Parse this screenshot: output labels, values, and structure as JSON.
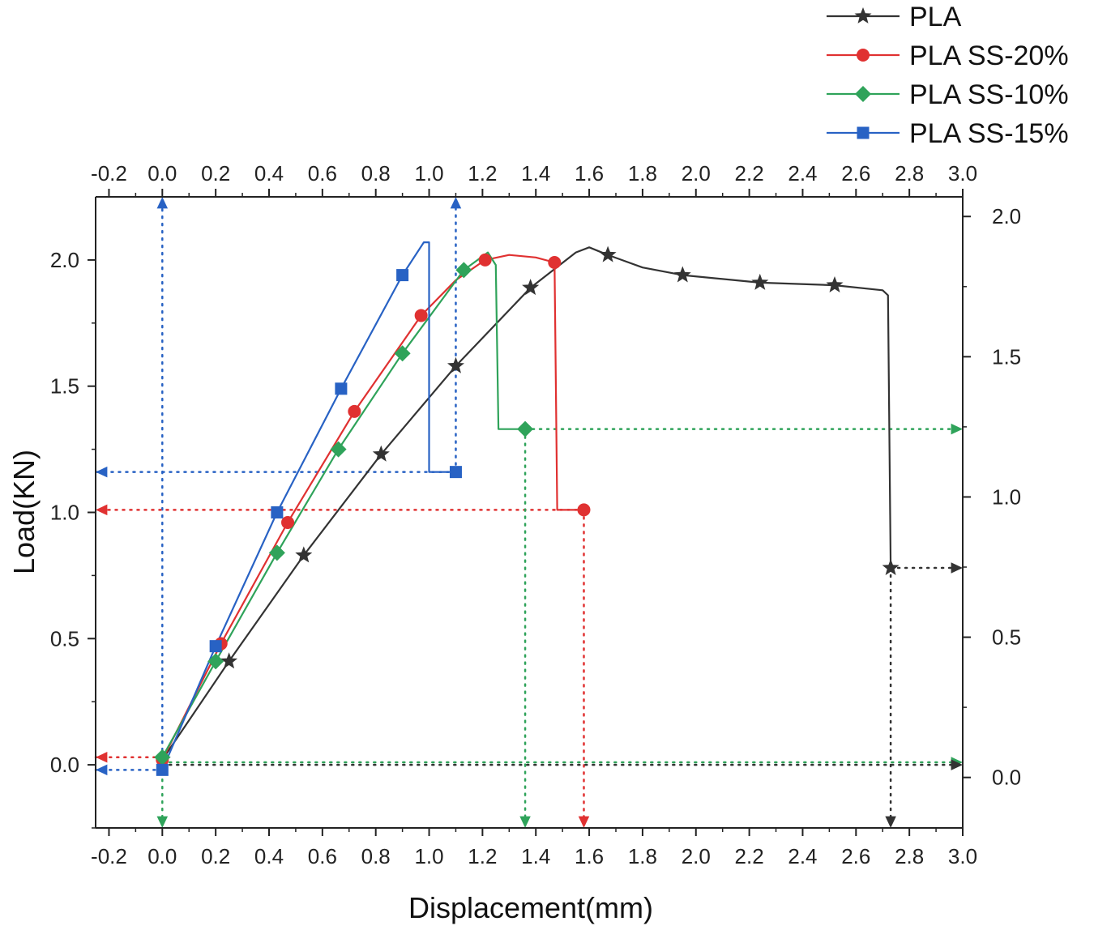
{
  "chart_data": {
    "type": "line",
    "title": "",
    "xlabel": "Displacement(mm)",
    "ylabel": "Load(KN)",
    "xlim": [
      -0.25,
      3.0
    ],
    "ylim": [
      -0.25,
      2.25
    ],
    "top_xlim": [
      -0.25,
      3.0
    ],
    "right_ylim": [
      -0.18,
      2.07
    ],
    "x_ticks": [
      -0.2,
      0.0,
      0.2,
      0.4,
      0.6,
      0.8,
      1.0,
      1.2,
      1.4,
      1.6,
      1.8,
      2.0,
      2.2,
      2.4,
      2.6,
      2.8,
      3.0
    ],
    "x_tick_labels": [
      "-0.2",
      "0.0",
      "0.2",
      "0.4",
      "0.6",
      "0.8",
      "1.0",
      "1.2",
      "1.4",
      "1.6",
      "1.8",
      "2.0",
      "2.2",
      "2.4",
      "2.6",
      "2.8",
      "3.0"
    ],
    "y_ticks": [
      0.0,
      0.5,
      1.0,
      1.5,
      2.0
    ],
    "y_tick_labels": [
      "0.0",
      "0.5",
      "1.0",
      "1.5",
      "2.0"
    ],
    "right_ticks": [
      0.0,
      0.5,
      1.0,
      1.5,
      2.0
    ],
    "right_tick_labels": [
      "0.0",
      "0.5",
      "1.0",
      "1.5",
      "2.0"
    ],
    "grid": false,
    "legend_position": "top-right",
    "legend": [
      "PLA",
      "PLA SS-20%",
      "PLA SS-10%",
      "PLA SS-15%"
    ],
    "series": [
      {
        "name": "PLA",
        "color": "#333333",
        "marker": "star",
        "line": [
          [
            0.0,
            0.02
          ],
          [
            0.25,
            0.41
          ],
          [
            0.53,
            0.83
          ],
          [
            0.82,
            1.23
          ],
          [
            1.1,
            1.58
          ],
          [
            1.38,
            1.89
          ],
          [
            1.55,
            2.03
          ],
          [
            1.6,
            2.05
          ],
          [
            1.67,
            2.02
          ],
          [
            1.8,
            1.97
          ],
          [
            1.95,
            1.94
          ],
          [
            2.24,
            1.91
          ],
          [
            2.52,
            1.9
          ],
          [
            2.7,
            1.88
          ],
          [
            2.72,
            1.86
          ],
          [
            2.73,
            0.78
          ]
        ],
        "markers": [
          [
            0.0,
            0.02
          ],
          [
            0.25,
            0.41
          ],
          [
            0.53,
            0.83
          ],
          [
            0.82,
            1.23
          ],
          [
            1.1,
            1.58
          ],
          [
            1.38,
            1.89
          ],
          [
            1.67,
            2.02
          ],
          [
            1.95,
            1.94
          ],
          [
            2.24,
            1.91
          ],
          [
            2.52,
            1.9
          ],
          [
            2.73,
            0.78
          ]
        ]
      },
      {
        "name": "PLA SS-20%",
        "color": "#e03131",
        "marker": "circle",
        "line": [
          [
            0.0,
            0.02
          ],
          [
            0.22,
            0.48
          ],
          [
            0.47,
            0.96
          ],
          [
            0.72,
            1.4
          ],
          [
            0.97,
            1.78
          ],
          [
            1.1,
            1.92
          ],
          [
            1.21,
            2.0
          ],
          [
            1.3,
            2.02
          ],
          [
            1.4,
            2.01
          ],
          [
            1.47,
            1.99
          ],
          [
            1.48,
            1.01
          ],
          [
            1.58,
            1.01
          ]
        ],
        "markers": [
          [
            0.0,
            0.02
          ],
          [
            0.22,
            0.48
          ],
          [
            0.47,
            0.96
          ],
          [
            0.72,
            1.4
          ],
          [
            0.97,
            1.78
          ],
          [
            1.21,
            2.0
          ],
          [
            1.47,
            1.99
          ],
          [
            1.58,
            1.01
          ]
        ]
      },
      {
        "name": "PLA SS-10%",
        "color": "#2fa35a",
        "marker": "diamond",
        "line": [
          [
            0.0,
            0.03
          ],
          [
            0.2,
            0.41
          ],
          [
            0.43,
            0.84
          ],
          [
            0.66,
            1.25
          ],
          [
            0.9,
            1.63
          ],
          [
            1.13,
            1.96
          ],
          [
            1.22,
            2.03
          ],
          [
            1.25,
            1.98
          ],
          [
            1.26,
            1.33
          ],
          [
            1.36,
            1.33
          ]
        ],
        "markers": [
          [
            0.0,
            0.03
          ],
          [
            0.2,
            0.41
          ],
          [
            0.43,
            0.84
          ],
          [
            0.66,
            1.25
          ],
          [
            0.9,
            1.63
          ],
          [
            1.13,
            1.96
          ],
          [
            1.36,
            1.33
          ]
        ]
      },
      {
        "name": "PLA SS-15%",
        "color": "#2862c4",
        "marker": "square",
        "line": [
          [
            0.0,
            -0.02
          ],
          [
            0.2,
            0.47
          ],
          [
            0.43,
            1.0
          ],
          [
            0.67,
            1.49
          ],
          [
            0.9,
            1.94
          ],
          [
            0.98,
            2.07
          ],
          [
            1.0,
            2.07
          ],
          [
            1.0,
            1.16
          ],
          [
            1.1,
            1.16
          ]
        ],
        "markers": [
          [
            0.0,
            -0.02
          ],
          [
            0.2,
            0.47
          ],
          [
            0.43,
            1.0
          ],
          [
            0.67,
            1.49
          ],
          [
            0.9,
            1.94
          ],
          [
            1.1,
            1.16
          ]
        ]
      }
    ],
    "guides": [
      {
        "color": "#2862c4",
        "from": [
          0.0,
          -0.02
        ],
        "to": [
          -0.25,
          -0.02
        ]
      },
      {
        "color": "#2862c4",
        "from": [
          0.0,
          0.0
        ],
        "to": [
          0.0,
          2.25
        ]
      },
      {
        "color": "#2862c4",
        "from": [
          1.1,
          1.16
        ],
        "to": [
          -0.25,
          1.16
        ]
      },
      {
        "color": "#2862c4",
        "from": [
          1.1,
          1.16
        ],
        "to": [
          1.1,
          2.25
        ]
      },
      {
        "color": "#e03131",
        "from": [
          0.0,
          0.03
        ],
        "to": [
          -0.25,
          0.03
        ]
      },
      {
        "color": "#e03131",
        "from": [
          1.58,
          1.01
        ],
        "to": [
          -0.25,
          1.01
        ]
      },
      {
        "color": "#e03131",
        "from": [
          1.58,
          1.01
        ],
        "to": [
          1.58,
          -0.25
        ]
      },
      {
        "color": "#2fa35a",
        "from": [
          0.0,
          0.0
        ],
        "to": [
          0.0,
          -0.25
        ]
      },
      {
        "color": "#2fa35a",
        "from": [
          0.0,
          0.01
        ],
        "to": [
          3.0,
          0.01
        ]
      },
      {
        "color": "#2fa35a",
        "from": [
          1.36,
          1.33
        ],
        "to": [
          3.0,
          1.33
        ]
      },
      {
        "color": "#2fa35a",
        "from": [
          1.36,
          1.33
        ],
        "to": [
          1.36,
          -0.25
        ]
      },
      {
        "color": "#333333",
        "from": [
          2.73,
          0.78
        ],
        "to": [
          3.0,
          0.78
        ]
      },
      {
        "color": "#333333",
        "from": [
          2.73,
          0.78
        ],
        "to": [
          2.73,
          -0.25
        ]
      },
      {
        "color": "#333333",
        "from": [
          0.0,
          0.0
        ],
        "to": [
          3.0,
          0.0
        ]
      }
    ]
  }
}
